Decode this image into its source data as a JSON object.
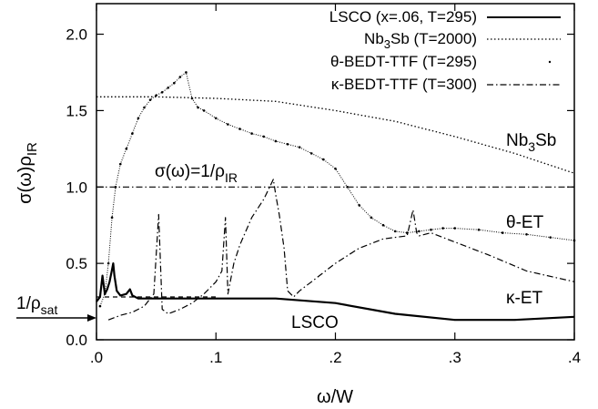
{
  "chart_data": {
    "type": "line",
    "xlabel": "ω/W",
    "ylabel": "σ(ω)ρIR",
    "xlim": [
      0,
      0.4
    ],
    "ylim": [
      0,
      2.2
    ],
    "x_ticks": [
      ".0",
      ".1",
      ".2",
      ".3",
      ".4"
    ],
    "y_ticks": [
      "0.0",
      "0.5",
      "1.0",
      "1.5",
      "2.0"
    ],
    "legend_position": "top-right",
    "legend": [
      "LSCO (x=.06, T=295)",
      "Nb3Sb (T=2000)",
      "θ-BEDT-TTF (T=295)",
      "κ-BEDT-TTF (T=300)"
    ],
    "series": [
      {
        "name": "LSCO (x=.06, T=295)",
        "style": "solid",
        "x": [
          0.0,
          0.003,
          0.005,
          0.007,
          0.009,
          0.011,
          0.013,
          0.014,
          0.015,
          0.017,
          0.02,
          0.025,
          0.028,
          0.03,
          0.035,
          0.05,
          0.1,
          0.15,
          0.2,
          0.25,
          0.3,
          0.35,
          0.4
        ],
        "y": [
          0.25,
          0.28,
          0.42,
          0.3,
          0.33,
          0.38,
          0.46,
          0.5,
          0.42,
          0.32,
          0.29,
          0.3,
          0.33,
          0.29,
          0.27,
          0.27,
          0.27,
          0.27,
          0.24,
          0.17,
          0.13,
          0.13,
          0.15
        ]
      },
      {
        "name": "Nb3Sb (T=2000)",
        "style": "dotted",
        "x": [
          0.0,
          0.05,
          0.1,
          0.15,
          0.2,
          0.25,
          0.3,
          0.35,
          0.4
        ],
        "y": [
          1.59,
          1.59,
          1.58,
          1.56,
          1.5,
          1.43,
          1.33,
          1.22,
          1.09
        ]
      },
      {
        "name": "θ-BEDT-TTF (T=295)",
        "style": "dots",
        "x": [
          0.003,
          0.007,
          0.01,
          0.013,
          0.016,
          0.02,
          0.025,
          0.03,
          0.035,
          0.04,
          0.045,
          0.05,
          0.055,
          0.06,
          0.065,
          0.07,
          0.075,
          0.08,
          0.085,
          0.09,
          0.1,
          0.11,
          0.12,
          0.13,
          0.14,
          0.15,
          0.16,
          0.17,
          0.18,
          0.19,
          0.2,
          0.21,
          0.22,
          0.23,
          0.24,
          0.25,
          0.26,
          0.27,
          0.28,
          0.29,
          0.3,
          0.32,
          0.34,
          0.36,
          0.38,
          0.4
        ],
        "y": [
          0.22,
          0.3,
          0.5,
          0.8,
          1.0,
          1.15,
          1.25,
          1.35,
          1.45,
          1.52,
          1.57,
          1.6,
          1.62,
          1.65,
          1.68,
          1.72,
          1.75,
          1.58,
          1.52,
          1.5,
          1.45,
          1.41,
          1.38,
          1.35,
          1.33,
          1.3,
          1.28,
          1.26,
          1.22,
          1.18,
          1.12,
          1.0,
          0.88,
          0.8,
          0.75,
          0.71,
          0.7,
          0.71,
          0.72,
          0.73,
          0.73,
          0.72,
          0.7,
          0.69,
          0.67,
          0.65
        ]
      },
      {
        "name": "κ-BEDT-TTF (T=300)",
        "style": "dashdot",
        "x": [
          0.01,
          0.02,
          0.03,
          0.04,
          0.048,
          0.052,
          0.055,
          0.06,
          0.07,
          0.08,
          0.09,
          0.1,
          0.105,
          0.108,
          0.11,
          0.115,
          0.12,
          0.13,
          0.14,
          0.145,
          0.148,
          0.15,
          0.153,
          0.157,
          0.16,
          0.165,
          0.17,
          0.18,
          0.2,
          0.22,
          0.24,
          0.26,
          0.265,
          0.268,
          0.27,
          0.28,
          0.3,
          0.33,
          0.36,
          0.4
        ],
        "y": [
          0.13,
          0.16,
          0.18,
          0.22,
          0.3,
          0.82,
          0.2,
          0.17,
          0.2,
          0.24,
          0.3,
          0.38,
          0.45,
          0.8,
          0.3,
          0.5,
          0.62,
          0.8,
          0.92,
          1.0,
          1.05,
          0.95,
          0.82,
          0.6,
          0.32,
          0.28,
          0.32,
          0.38,
          0.5,
          0.6,
          0.66,
          0.68,
          0.85,
          0.7,
          0.68,
          0.7,
          0.64,
          0.55,
          0.45,
          0.38
        ]
      },
      {
        "name": "",
        "style": "dashdot",
        "x": [
          0.0,
          0.4
        ],
        "y": [
          1.0,
          1.0
        ]
      },
      {
        "name": "",
        "style": "dashed",
        "x": [
          0.0,
          0.1
        ],
        "y": [
          0.28,
          0.28
        ]
      }
    ],
    "annotations": [
      {
        "text": "Nb3Sb",
        "x": 0.35,
        "y": 1.3
      },
      {
        "text": "σ(ω)=1/ρIR",
        "x": 0.05,
        "y": 1.1
      },
      {
        "text": "θ-ET",
        "x": 0.35,
        "y": 0.8
      },
      {
        "text": "κ-ET",
        "x": 0.35,
        "y": 0.3
      },
      {
        "text": "LSCO",
        "x": 0.16,
        "y": 0.1
      },
      {
        "text": "1/ρsat",
        "x": -0.02,
        "y": 0.33
      }
    ]
  },
  "text": {
    "xlabel": "ω/W",
    "ylabel_main": "σ(ω)ρ",
    "ylabel_sub": "IR",
    "legend_1": "LSCO (x=.06, T=295)",
    "legend_2_main": "Nb",
    "legend_2_sub": "3",
    "legend_2_rest": "Sb (T=2000)",
    "legend_3": "θ-BEDT-TTF (T=295)",
    "legend_4": "κ-BEDT-TTF (T=300)",
    "anno_nb_main": "Nb",
    "anno_nb_sub": "3",
    "anno_nb_rest": "Sb",
    "anno_sigma_main": "σ(ω)=1/ρ",
    "anno_sigma_sub": "IR",
    "anno_theta": "θ-ET",
    "anno_kappa": "κ-ET",
    "anno_lsco": "LSCO",
    "anno_sat_main": "1/ρ",
    "anno_sat_sub": "sat"
  }
}
